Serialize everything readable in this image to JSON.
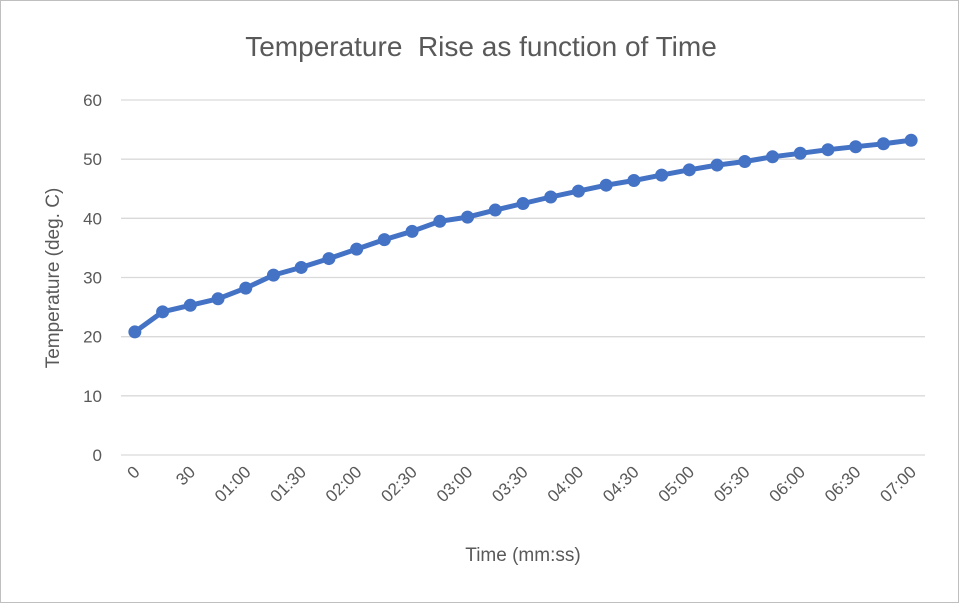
{
  "chart_data": {
    "type": "line",
    "title": "Temperature  Rise as function of Time",
    "xlabel": "Time (mm:ss)",
    "ylabel": "Temperature (deg. C)",
    "ylim": [
      0,
      60
    ],
    "yticks": [
      "0",
      "10",
      "20",
      "30",
      "40",
      "50",
      "60"
    ],
    "grid": true,
    "legend": "none",
    "line_color": "#4472c4",
    "grid_color": "#d9d9d9",
    "x": [
      "0",
      "15",
      "30",
      "45",
      "01:00",
      "01:15",
      "01:30",
      "01:45",
      "02:00",
      "02:15",
      "02:30",
      "02:45",
      "03:00",
      "03:15",
      "03:30",
      "03:45",
      "04:00",
      "04:15",
      "04:30",
      "04:45",
      "05:00",
      "05:15",
      "05:30",
      "05:45",
      "06:00",
      "06:15",
      "06:30",
      "06:45",
      "07:00"
    ],
    "xtick_labels": [
      "0",
      "30",
      "01:00",
      "01:30",
      "02:00",
      "02:30",
      "03:00",
      "03:30",
      "04:00",
      "04:30",
      "05:00",
      "05:30",
      "06:00",
      "06:30",
      "07:00"
    ],
    "series": [
      {
        "values": [
          20.8,
          24.2,
          25.3,
          26.4,
          28.2,
          30.4,
          31.7,
          33.2,
          34.8,
          36.4,
          37.8,
          39.5,
          40.2,
          41.4,
          42.5,
          43.6,
          44.6,
          45.6,
          46.4,
          47.3,
          48.2,
          49.0,
          49.6,
          50.4,
          51.0,
          51.6,
          52.1,
          52.6,
          53.2
        ]
      }
    ]
  }
}
